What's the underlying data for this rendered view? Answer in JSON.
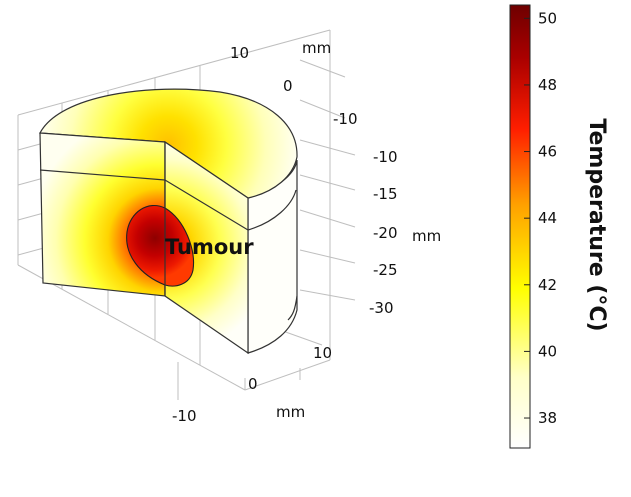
{
  "chart_data": {
    "type": "heatmap",
    "annotation": "Tumour",
    "axes": {
      "x": {
        "label": "mm",
        "ticks": [
          10,
          0,
          -10
        ]
      },
      "y": {
        "label": "mm",
        "ticks": [
          10,
          0,
          -10
        ]
      },
      "z": {
        "label": "mm",
        "ticks": [
          -10,
          -15,
          -20,
          -25,
          -30
        ]
      }
    },
    "colorbar": {
      "title": "Temperature (°C)",
      "ticks": [
        50,
        48,
        46,
        44,
        42,
        40,
        38
      ],
      "range": [
        37.1,
        50.4
      ],
      "colormap": [
        "#ffffff",
        "#ffffc8",
        "#ffff00",
        "#ffa000",
        "#ff1e00",
        "#aa0000",
        "#6e0000"
      ]
    },
    "field": {
      "peak_temperature": 50.4,
      "ambient_temperature": 37.1
    }
  }
}
